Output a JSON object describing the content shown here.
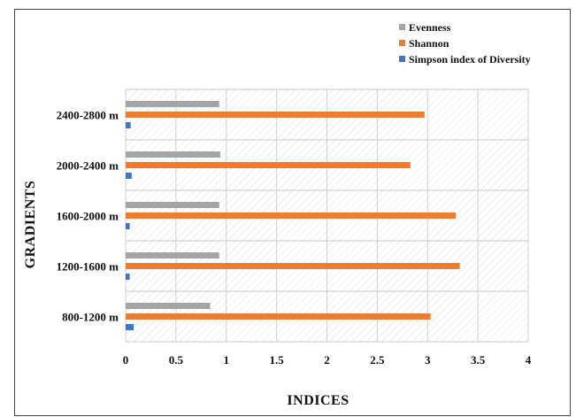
{
  "chart_data": {
    "type": "bar",
    "orientation": "horizontal",
    "categories": [
      "800-1200 m",
      "1200-1600 m",
      "1600-2000 m",
      "2000-2400 m",
      "2400-2800 m"
    ],
    "series": [
      {
        "name": "Evenness",
        "color": "#a5a5a5",
        "values": [
          0.84,
          0.93,
          0.93,
          0.94,
          0.93
        ]
      },
      {
        "name": "Shannon",
        "color": "#ed7d31",
        "values": [
          3.03,
          3.32,
          3.28,
          2.83,
          2.97
        ]
      },
      {
        "name": "Simpson index of Diversity",
        "color": "#4472c4",
        "values": [
          0.08,
          0.04,
          0.04,
          0.06,
          0.05
        ]
      }
    ],
    "xlabel": "INDICES",
    "ylabel": "GRADIENTS",
    "xlim": [
      0,
      4
    ],
    "xticks": [
      "0",
      "0.5",
      "1",
      "1.5",
      "2",
      "2.5",
      "3",
      "3.5",
      "4"
    ],
    "grid": true,
    "legend": "top-right"
  }
}
